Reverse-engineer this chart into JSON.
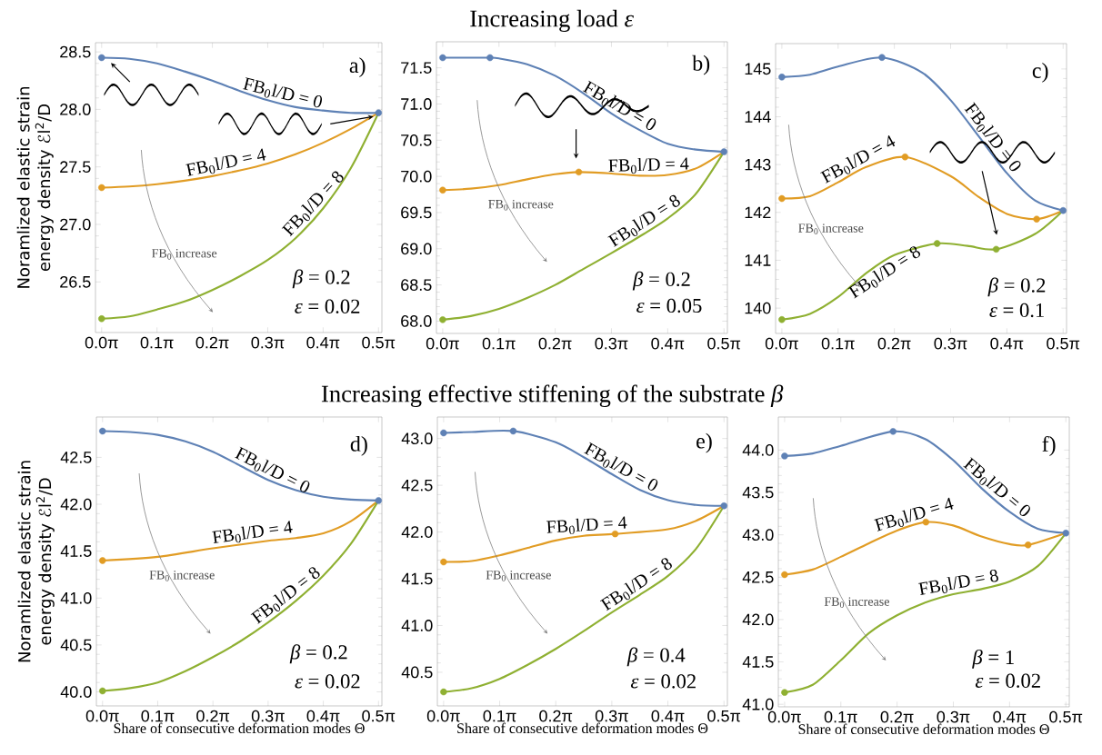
{
  "chart_data": [
    {
      "type": "line",
      "ylabel": "Noramlized elastic strain energy density ℰl$^{2}$/D",
      "xlim": [
        -0.035,
        1.59
      ],
      "xticks": [
        {
          "value": 0,
          "label": "0.0π"
        },
        {
          "value": 0.3142,
          "label": "0.1π"
        },
        {
          "value": 0.6283,
          "label": "0.2π"
        },
        {
          "value": 0.9425,
          "label": "0.3π"
        },
        {
          "value": 1.2566,
          "label": "0.4π"
        },
        {
          "value": 1.5708,
          "label": "0.5π"
        }
      ],
      "ylim": [
        26.06,
        28.58
      ],
      "yticks": [
        26.5,
        {
          "value": 27,
          "label": "27.0"
        },
        27.5,
        {
          "value": 28,
          "label": "28.0"
        },
        28.5
      ],
      "series": [
        {
          "name": "FB$_{0}$l/D = 0",
          "color": "#5e81b5",
          "x": [
            0,
            0.157,
            0.314,
            0.471,
            0.628,
            0.785,
            0.942,
            1.1,
            1.257,
            1.414,
            1.571
          ],
          "values": [
            28.45,
            28.44,
            28.4,
            28.33,
            28.25,
            28.16,
            28.08,
            28.02,
            27.99,
            27.97,
            27.97
          ]
        },
        {
          "name": "FB$_{0}$l/D = 4",
          "color": "#e19c24",
          "x": [
            0,
            0.157,
            0.314,
            0.471,
            0.628,
            0.785,
            0.942,
            1.1,
            1.257,
            1.414,
            1.571
          ],
          "values": [
            27.32,
            27.33,
            27.35,
            27.38,
            27.42,
            27.47,
            27.53,
            27.61,
            27.71,
            27.83,
            27.97
          ]
        },
        {
          "name": "FB$_{0}$l/D = 8",
          "color": "#8fb032",
          "x": [
            0,
            0.157,
            0.314,
            0.471,
            0.628,
            0.785,
            0.942,
            1.1,
            1.257,
            1.414,
            1.571
          ],
          "values": [
            26.18,
            26.2,
            26.26,
            26.33,
            26.43,
            26.55,
            26.69,
            26.88,
            27.14,
            27.49,
            27.97
          ]
        },
        {
          "type": "scatter",
          "marker": "circle",
          "color": "#e19c24",
          "x": [
            0
          ],
          "values": [
            27.32
          ]
        },
        {
          "type": "scatter",
          "marker": "circle",
          "color": "#8fb032",
          "x": [
            0
          ],
          "values": [
            26.18
          ]
        },
        {
          "type": "scatter",
          "marker": "circle",
          "color": "#5e81b5",
          "x": [
            0,
            1.571
          ],
          "values": [
            28.45,
            27.97
          ]
        }
      ],
      "annotations": [
        "a)",
        "FB$_{0}$ increase",
        "*β* = 0.2",
        "*ε* = 0.02"
      ]
    },
    {
      "type": "line",
      "title": "Increasing load *ε*",
      "xlim": [
        -0.035,
        1.59
      ],
      "xticks": [
        {
          "value": 0,
          "label": "0.0π"
        },
        {
          "value": 0.3142,
          "label": "0.1π"
        },
        {
          "value": 0.6283,
          "label": "0.2π"
        },
        {
          "value": 0.9425,
          "label": "0.3π"
        },
        {
          "value": 1.2566,
          "label": "0.4π"
        },
        {
          "value": 1.5708,
          "label": "0.5π"
        }
      ],
      "ylim": [
        67.83,
        71.86
      ],
      "yticks": [
        {
          "value": 68,
          "label": "68.0"
        },
        68.5,
        {
          "value": 69,
          "label": "69.0"
        },
        69.5,
        {
          "value": 70,
          "label": "70.0"
        },
        70.5,
        {
          "value": 71,
          "label": "71.0"
        },
        71.5
      ],
      "series": [
        {
          "name": "FB$_{0}$l/D = 0",
          "color": "#5e81b5",
          "x": [
            0,
            0.157,
            0.264,
            0.314,
            0.471,
            0.628,
            0.785,
            0.942,
            1.1,
            1.257,
            1.414,
            1.571
          ],
          "values": [
            71.64,
            71.64,
            71.64,
            71.63,
            71.55,
            71.39,
            71.15,
            70.87,
            70.64,
            70.45,
            70.37,
            70.34
          ]
        },
        {
          "name": "FB$_{0}$l/D = 4",
          "color": "#e19c24",
          "x": [
            0,
            0.157,
            0.314,
            0.471,
            0.628,
            0.76,
            0.942,
            1.1,
            1.257,
            1.414,
            1.571
          ],
          "values": [
            69.81,
            69.83,
            69.88,
            69.96,
            70.03,
            70.06,
            70.04,
            70.01,
            70.02,
            70.11,
            70.34
          ]
        },
        {
          "name": "FB$_{0}$l/D = 8",
          "color": "#8fb032",
          "x": [
            0,
            0.157,
            0.314,
            0.471,
            0.628,
            0.785,
            0.942,
            1.1,
            1.257,
            1.414,
            1.571
          ],
          "values": [
            68.02,
            68.07,
            68.17,
            68.32,
            68.5,
            68.72,
            68.94,
            69.17,
            69.42,
            69.76,
            70.34
          ]
        },
        {
          "type": "scatter",
          "marker": "circle",
          "color": "#e19c24",
          "x": [
            0,
            0.76
          ],
          "values": [
            69.81,
            70.06
          ]
        },
        {
          "type": "scatter",
          "marker": "circle",
          "color": "#8fb032",
          "x": [
            0
          ],
          "values": [
            68.02
          ]
        },
        {
          "type": "scatter",
          "marker": "circle",
          "color": "#5e81b5",
          "x": [
            0,
            0.264,
            1.571
          ],
          "values": [
            71.64,
            71.64,
            70.34
          ]
        }
      ],
      "annotations": [
        "b)",
        "FB$_{0}$ increase",
        "*β* = 0.2",
        "*ε* = 0.05"
      ]
    },
    {
      "type": "line",
      "xlim": [
        -0.035,
        1.59
      ],
      "xticks": [
        {
          "value": 0,
          "label": "0.0π"
        },
        {
          "value": 0.3142,
          "label": "0.1π"
        },
        {
          "value": 0.6283,
          "label": "0.2π"
        },
        {
          "value": 0.9425,
          "label": "0.3π"
        },
        {
          "value": 1.2566,
          "label": "0.4π"
        },
        {
          "value": 1.5708,
          "label": "0.5π"
        }
      ],
      "ylim": [
        139.47,
        145.53
      ],
      "yticks": [
        140,
        141,
        142,
        143,
        144,
        145
      ],
      "series": [
        {
          "name": "FB$_{0}$l/D = 0",
          "color": "#5e81b5",
          "x": [
            0,
            0.157,
            0.314,
            0.559,
            0.785,
            0.942,
            1.1,
            1.257,
            1.414,
            1.571
          ],
          "values": [
            144.83,
            144.88,
            145.05,
            145.24,
            144.92,
            144.35,
            143.59,
            142.82,
            142.25,
            142.04
          ]
        },
        {
          "name": "FB$_{0}$l/D = 4",
          "color": "#e19c24",
          "x": [
            0,
            0.157,
            0.314,
            0.471,
            0.688,
            0.942,
            1.1,
            1.257,
            1.423,
            1.571
          ],
          "values": [
            142.29,
            142.34,
            142.63,
            142.95,
            143.16,
            142.76,
            142.32,
            141.97,
            141.86,
            142.04
          ]
        },
        {
          "name": "FB$_{0}$l/D = 8",
          "color": "#8fb032",
          "x": [
            0,
            0.157,
            0.314,
            0.471,
            0.628,
            0.867,
            1.037,
            1.197,
            1.414,
            1.571
          ],
          "values": [
            139.76,
            139.88,
            140.23,
            140.73,
            141.11,
            141.35,
            141.3,
            141.23,
            141.55,
            142.04
          ]
        },
        {
          "type": "scatter",
          "marker": "circle",
          "color": "#e19c24",
          "x": [
            0,
            0.688,
            1.423
          ],
          "values": [
            142.29,
            143.16,
            141.86
          ]
        },
        {
          "type": "scatter",
          "marker": "circle",
          "color": "#8fb032",
          "x": [
            0,
            0.867,
            1.197
          ],
          "values": [
            139.76,
            141.35,
            141.23
          ]
        },
        {
          "type": "scatter",
          "marker": "circle",
          "color": "#5e81b5",
          "x": [
            0,
            0.559,
            1.571
          ],
          "values": [
            144.83,
            145.24,
            142.04
          ]
        }
      ],
      "annotations": [
        "c)",
        "FB$_{0}$ increase",
        "*β* = 0.2",
        "*ε* = 0.1"
      ]
    },
    {
      "type": "line",
      "ylabel": "Noramlized elastic strain energy density ℰl$^{2}$/D",
      "xlabel": "Share of consecutive deformation modes Θ",
      "xlim": [
        -0.035,
        1.59
      ],
      "xticks": [
        {
          "value": 0,
          "label": "0.0π"
        },
        {
          "value": 0.3142,
          "label": "0.1π"
        },
        {
          "value": 0.6283,
          "label": "0.2π"
        },
        {
          "value": 0.9425,
          "label": "0.3π"
        },
        {
          "value": 1.2566,
          "label": "0.4π"
        },
        {
          "value": 1.5708,
          "label": "0.5π"
        }
      ],
      "ylim": [
        39.85,
        42.93
      ],
      "yticks": [
        {
          "value": 40,
          "label": "40.0"
        },
        40.5,
        {
          "value": 41,
          "label": "41.0"
        },
        41.5,
        {
          "value": 42,
          "label": "42.0"
        },
        42.5
      ],
      "series": [
        {
          "name": "FB$_{0}$l/D = 0",
          "color": "#5e81b5",
          "x": [
            0,
            0.157,
            0.314,
            0.471,
            0.628,
            0.785,
            0.942,
            1.1,
            1.257,
            1.414,
            1.571
          ],
          "values": [
            42.78,
            42.77,
            42.74,
            42.67,
            42.56,
            42.41,
            42.26,
            42.15,
            42.08,
            42.05,
            42.04
          ]
        },
        {
          "name": "FB$_{0}$l/D = 4",
          "color": "#e19c24",
          "x": [
            0,
            0.314,
            0.628,
            0.942,
            1.1,
            1.257,
            1.414,
            1.571
          ],
          "values": [
            41.4,
            41.44,
            41.53,
            41.61,
            41.64,
            41.69,
            41.82,
            42.04
          ]
        },
        {
          "name": "FB$_{0}$l/D = 8",
          "color": "#8fb032",
          "x": [
            0,
            0.157,
            0.314,
            0.471,
            0.628,
            0.785,
            0.942,
            1.1,
            1.257,
            1.414,
            1.571
          ],
          "values": [
            40.01,
            40.04,
            40.1,
            40.22,
            40.37,
            40.54,
            40.74,
            40.97,
            41.24,
            41.58,
            42.04
          ]
        },
        {
          "type": "scatter",
          "marker": "circle",
          "color": "#e19c24",
          "x": [
            0
          ],
          "values": [
            41.4
          ]
        },
        {
          "type": "scatter",
          "marker": "circle",
          "color": "#8fb032",
          "x": [
            0
          ],
          "values": [
            40.01
          ]
        },
        {
          "type": "scatter",
          "marker": "circle",
          "color": "#5e81b5",
          "x": [
            0,
            1.571
          ],
          "values": [
            42.78,
            42.04
          ]
        }
      ],
      "annotations": [
        "d)",
        "FB$_{0}$ increase",
        "*β* = 0.2",
        "*ε* = 0.02"
      ]
    },
    {
      "type": "line",
      "title": "Increasing effective stiffening of the substrate *β*",
      "xlabel": "Share of consecutive deformation modes Θ",
      "xlim": [
        -0.035,
        1.59
      ],
      "xticks": [
        {
          "value": 0,
          "label": "0.0π"
        },
        {
          "value": 0.3142,
          "label": "0.1π"
        },
        {
          "value": 0.6283,
          "label": "0.2π"
        },
        {
          "value": 0.9425,
          "label": "0.3π"
        },
        {
          "value": 1.2566,
          "label": "0.4π"
        },
        {
          "value": 1.5708,
          "label": "0.5π"
        }
      ],
      "ylim": [
        40.14,
        43.23
      ],
      "yticks": [
        40.5,
        {
          "value": 41,
          "label": "41.0"
        },
        41.5,
        {
          "value": 42,
          "label": "42.0"
        },
        42.5,
        {
          "value": 43,
          "label": "43.0"
        }
      ],
      "series": [
        {
          "name": "FB$_{0}$l/D = 0",
          "color": "#5e81b5",
          "x": [
            0,
            0.157,
            0.39,
            0.628,
            0.785,
            0.942,
            1.1,
            1.257,
            1.414,
            1.571
          ],
          "values": [
            43.06,
            43.07,
            43.08,
            42.96,
            42.8,
            42.62,
            42.45,
            42.34,
            42.29,
            42.28
          ]
        },
        {
          "name": "FB$_{0}$l/D = 4",
          "color": "#e19c24",
          "x": [
            0,
            0.157,
            0.314,
            0.471,
            0.628,
            0.785,
            0.961,
            1.257,
            1.414,
            1.571
          ],
          "values": [
            41.68,
            41.69,
            41.75,
            41.83,
            41.91,
            41.96,
            41.98,
            42.03,
            42.12,
            42.28
          ]
        },
        {
          "name": "FB$_{0}$l/D = 8",
          "color": "#8fb032",
          "x": [
            0,
            0.157,
            0.314,
            0.471,
            0.628,
            0.785,
            0.942,
            1.1,
            1.257,
            1.414,
            1.571
          ],
          "values": [
            40.29,
            40.33,
            40.43,
            40.58,
            40.75,
            40.94,
            41.14,
            41.33,
            41.53,
            41.82,
            42.28
          ]
        },
        {
          "type": "scatter",
          "marker": "circle",
          "color": "#e19c24",
          "x": [
            0,
            0.961
          ],
          "values": [
            41.68,
            41.98
          ]
        },
        {
          "type": "scatter",
          "marker": "circle",
          "color": "#8fb032",
          "x": [
            0
          ],
          "values": [
            40.29
          ]
        },
        {
          "type": "scatter",
          "marker": "circle",
          "color": "#5e81b5",
          "x": [
            0,
            0.39,
            1.571
          ],
          "values": [
            43.06,
            43.08,
            42.28
          ]
        }
      ],
      "annotations": [
        "e)",
        "FB$_{0}$ increase",
        "*β* = 0.4",
        "*ε* = 0.02"
      ]
    },
    {
      "type": "line",
      "xlabel": "Share of consecutive deformation modes Θ",
      "xlim": [
        -0.035,
        1.59
      ],
      "xticks": [
        {
          "value": 0,
          "label": "0.0π"
        },
        {
          "value": 0.3142,
          "label": "0.1π"
        },
        {
          "value": 0.6283,
          "label": "0.2π"
        },
        {
          "value": 0.9425,
          "label": "0.3π"
        },
        {
          "value": 1.2566,
          "label": "0.4π"
        },
        {
          "value": 1.5708,
          "label": "0.5π"
        }
      ],
      "ylim": [
        40.97,
        44.39
      ],
      "yticks": [
        {
          "value": 41,
          "label": "41.0"
        },
        41.5,
        {
          "value": 42,
          "label": "42.0"
        },
        42.5,
        {
          "value": 43,
          "label": "43.0"
        },
        43.5,
        {
          "value": 44,
          "label": "44.0"
        }
      ],
      "series": [
        {
          "name": "FB$_{0}$l/D = 0",
          "color": "#5e81b5",
          "x": [
            0,
            0.157,
            0.314,
            0.606,
            0.785,
            0.942,
            1.1,
            1.257,
            1.414,
            1.571
          ],
          "values": [
            43.93,
            43.96,
            44.05,
            44.22,
            44.13,
            43.88,
            43.55,
            43.27,
            43.07,
            43.02
          ]
        },
        {
          "name": "FB$_{0}$l/D = 4",
          "color": "#e19c24",
          "x": [
            0,
            0.157,
            0.314,
            0.471,
            0.628,
            0.789,
            0.942,
            1.1,
            1.257,
            1.36,
            1.571
          ],
          "values": [
            42.53,
            42.59,
            42.74,
            42.9,
            43.05,
            43.15,
            43.11,
            42.98,
            42.89,
            42.88,
            43.02
          ]
        },
        {
          "name": "FB$_{0}$l/D = 8",
          "color": "#8fb032",
          "x": [
            0,
            0.157,
            0.314,
            0.471,
            0.628,
            0.785,
            0.942,
            1.1,
            1.257,
            1.414,
            1.571
          ],
          "values": [
            41.14,
            41.23,
            41.52,
            41.84,
            42.05,
            42.2,
            42.3,
            42.36,
            42.45,
            42.63,
            43.02
          ]
        },
        {
          "type": "scatter",
          "marker": "circle",
          "color": "#e19c24",
          "x": [
            0,
            0.789,
            1.36
          ],
          "values": [
            42.53,
            43.15,
            42.88
          ]
        },
        {
          "type": "scatter",
          "marker": "circle",
          "color": "#8fb032",
          "x": [
            0
          ],
          "values": [
            41.14
          ]
        },
        {
          "type": "scatter",
          "marker": "circle",
          "color": "#5e81b5",
          "x": [
            0,
            0.606,
            1.571
          ],
          "values": [
            43.93,
            44.22,
            43.02
          ]
        }
      ],
      "annotations": [
        "f)",
        "FB$_{0}$ increase",
        "*β* = 1",
        "*ε* = 0.02"
      ]
    }
  ]
}
